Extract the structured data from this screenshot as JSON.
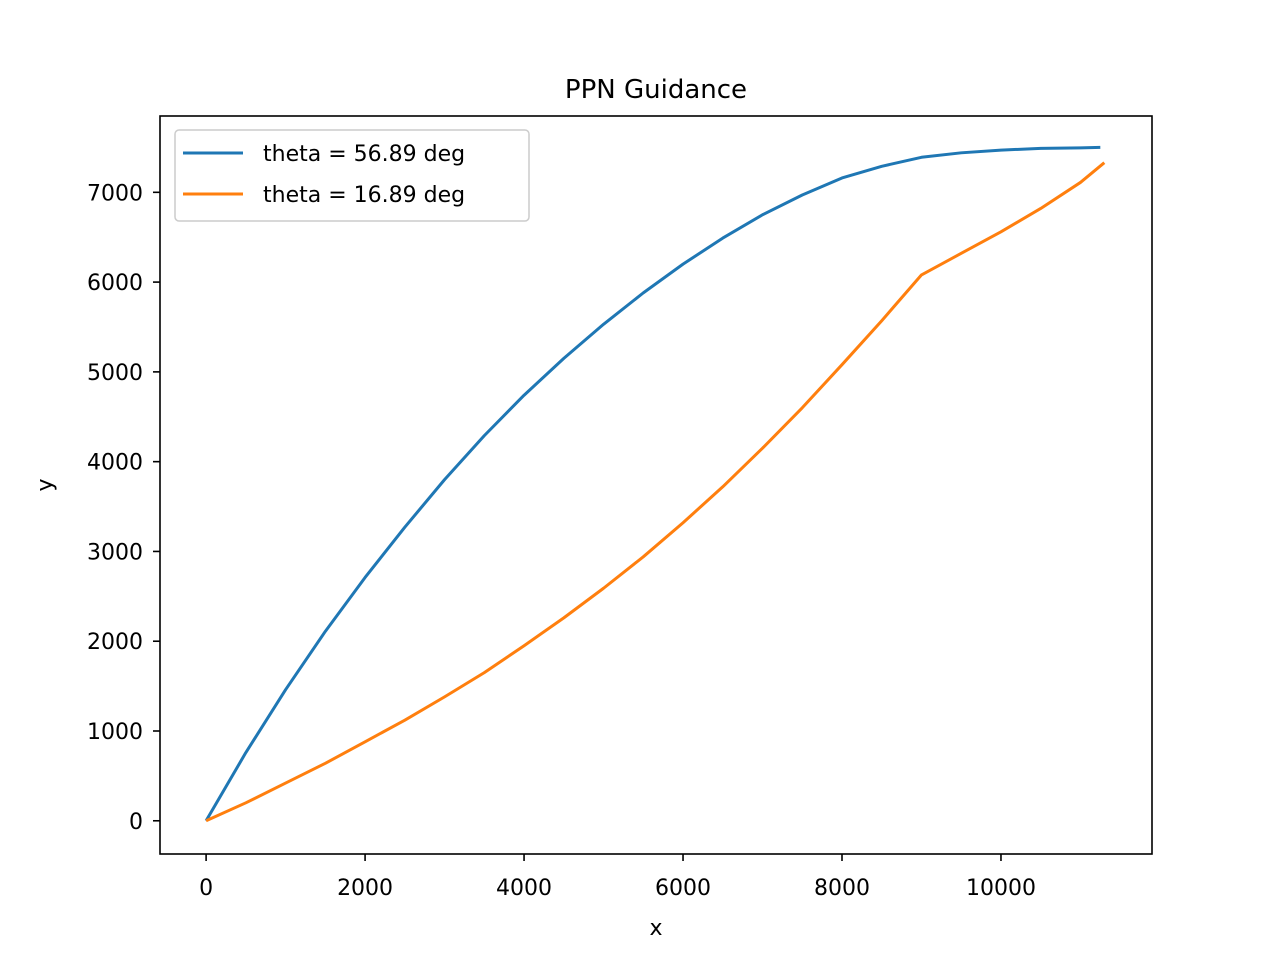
{
  "chart_data": {
    "type": "line",
    "title": "PPN Guidance",
    "xlabel": "x",
    "ylabel": "y",
    "xlim": [
      -580,
      11900
    ],
    "ylim": [
      -370,
      7850
    ],
    "xticks": [
      0,
      2000,
      4000,
      6000,
      8000,
      10000
    ],
    "yticks": [
      0,
      1000,
      2000,
      3000,
      4000,
      5000,
      6000,
      7000
    ],
    "grid": false,
    "legend_position": "upper-left",
    "series": [
      {
        "name": "theta = 56.89 deg",
        "color": "#1f77b4",
        "x": [
          0,
          500,
          1000,
          1500,
          2000,
          2500,
          3000,
          3500,
          4000,
          4500,
          5000,
          5500,
          6000,
          6500,
          7000,
          7500,
          8000,
          8500,
          9000,
          9500,
          10000,
          10500,
          11000,
          11250
        ],
        "y": [
          0,
          760,
          1460,
          2110,
          2710,
          3270,
          3800,
          4290,
          4740,
          5150,
          5530,
          5880,
          6200,
          6490,
          6750,
          6970,
          7160,
          7290,
          7390,
          7440,
          7470,
          7490,
          7495,
          7500
        ]
      },
      {
        "name": "theta = 16.89 deg",
        "color": "#ff7f0e",
        "x": [
          0,
          500,
          1000,
          1500,
          2000,
          2500,
          3000,
          3500,
          4000,
          4500,
          5000,
          5500,
          6000,
          6500,
          7000,
          7500,
          8000,
          8500,
          9000,
          9500,
          10000,
          10500,
          11000,
          11300
        ],
        "y": [
          0,
          200,
          420,
          640,
          880,
          1120,
          1380,
          1650,
          1950,
          2260,
          2590,
          2940,
          3320,
          3720,
          4150,
          4600,
          5080,
          5570,
          6080,
          6320,
          6560,
          6820,
          7110,
          7330
        ]
      }
    ]
  }
}
